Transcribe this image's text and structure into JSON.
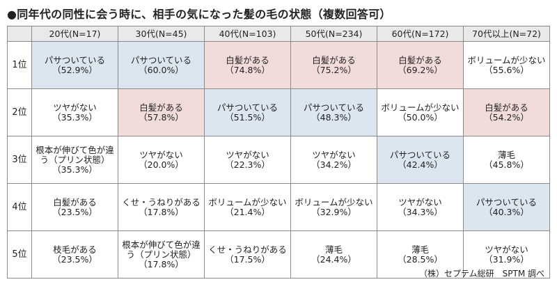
{
  "title": "●同年代の同性に会う時に、相手の気になった髪の毛の状態（複数回答可）",
  "source": "（株）セプテム総研　SPTM 調べ",
  "colors": {
    "blue": "#dce6f0",
    "pink": "#f2dcdb",
    "header": "#e9e9e9"
  },
  "columns": [
    "20代(N=17)",
    "30代(N=45)",
    "40代(N=103)",
    "50代(N=234)",
    "60代(N=172)",
    "70代以上(N=72)"
  ],
  "rows": [
    {
      "rank": "1位",
      "cells": [
        {
          "label": "パサついている",
          "value": "（52.9%）",
          "tone": "blue"
        },
        {
          "label": "パサついている",
          "value": "（60.0%）",
          "tone": "blue"
        },
        {
          "label": "白髪がある",
          "value": "（74.8%）",
          "tone": "pink"
        },
        {
          "label": "白髪がある",
          "value": "（75.2%）",
          "tone": "pink"
        },
        {
          "label": "白髪がある",
          "value": "（69.2%）",
          "tone": "pink"
        },
        {
          "label": "ボリュームが少ない",
          "value": "（55.6%）",
          "tone": "none"
        }
      ]
    },
    {
      "rank": "2位",
      "cells": [
        {
          "label": "ツヤがない",
          "value": "（35.3%）",
          "tone": "none"
        },
        {
          "label": "白髪がある",
          "value": "（57.8%）",
          "tone": "pink"
        },
        {
          "label": "パサついている",
          "value": "（51.5%）",
          "tone": "blue"
        },
        {
          "label": "パサついている",
          "value": "（48.3%）",
          "tone": "blue"
        },
        {
          "label": "ボリュームが少ない",
          "value": "（50.0%）",
          "tone": "none"
        },
        {
          "label": "白髪がある",
          "value": "（54.2%）",
          "tone": "pink"
        }
      ]
    },
    {
      "rank": "3位",
      "cells": [
        {
          "label": "根本が伸びて色が違う（プリン状態）",
          "value": "（35.3%）",
          "tone": "none"
        },
        {
          "label": "ツヤがない",
          "value": "（20.0%）",
          "tone": "none"
        },
        {
          "label": "ツヤがない",
          "value": "（22.3%）",
          "tone": "none"
        },
        {
          "label": "ツヤがない",
          "value": "（34.2%）",
          "tone": "none"
        },
        {
          "label": "パサついている",
          "value": "（42.4%）",
          "tone": "blue"
        },
        {
          "label": "薄毛",
          "value": "（45.8%）",
          "tone": "none"
        }
      ]
    },
    {
      "rank": "4位",
      "cells": [
        {
          "label": "白髪がある",
          "value": "（23.5%）",
          "tone": "none"
        },
        {
          "label": "くせ・うねりがある",
          "value": "（17.8%）",
          "tone": "none"
        },
        {
          "label": "ボリュームが少ない",
          "value": "（21.4%）",
          "tone": "none"
        },
        {
          "label": "ボリュームが少ない",
          "value": "（32.9%）",
          "tone": "none"
        },
        {
          "label": "ツヤがない",
          "value": "（34.3%）",
          "tone": "none"
        },
        {
          "label": "パサついている",
          "value": "（40.3%）",
          "tone": "blue"
        }
      ]
    },
    {
      "rank": "5位",
      "cells": [
        {
          "label": "枝毛がある",
          "value": "（23.5%）",
          "tone": "none"
        },
        {
          "label": "根本が伸びて色が違う（プリン状態）",
          "value": "（17.8%）",
          "tone": "none"
        },
        {
          "label": "くせ・うねりがある",
          "value": "（17.5%）",
          "tone": "none"
        },
        {
          "label": "薄毛",
          "value": "（24.4%）",
          "tone": "none"
        },
        {
          "label": "薄毛",
          "value": "（28.5%）",
          "tone": "none"
        },
        {
          "label": "ツヤがない",
          "value": "（31.9%）",
          "tone": "none"
        }
      ]
    }
  ]
}
